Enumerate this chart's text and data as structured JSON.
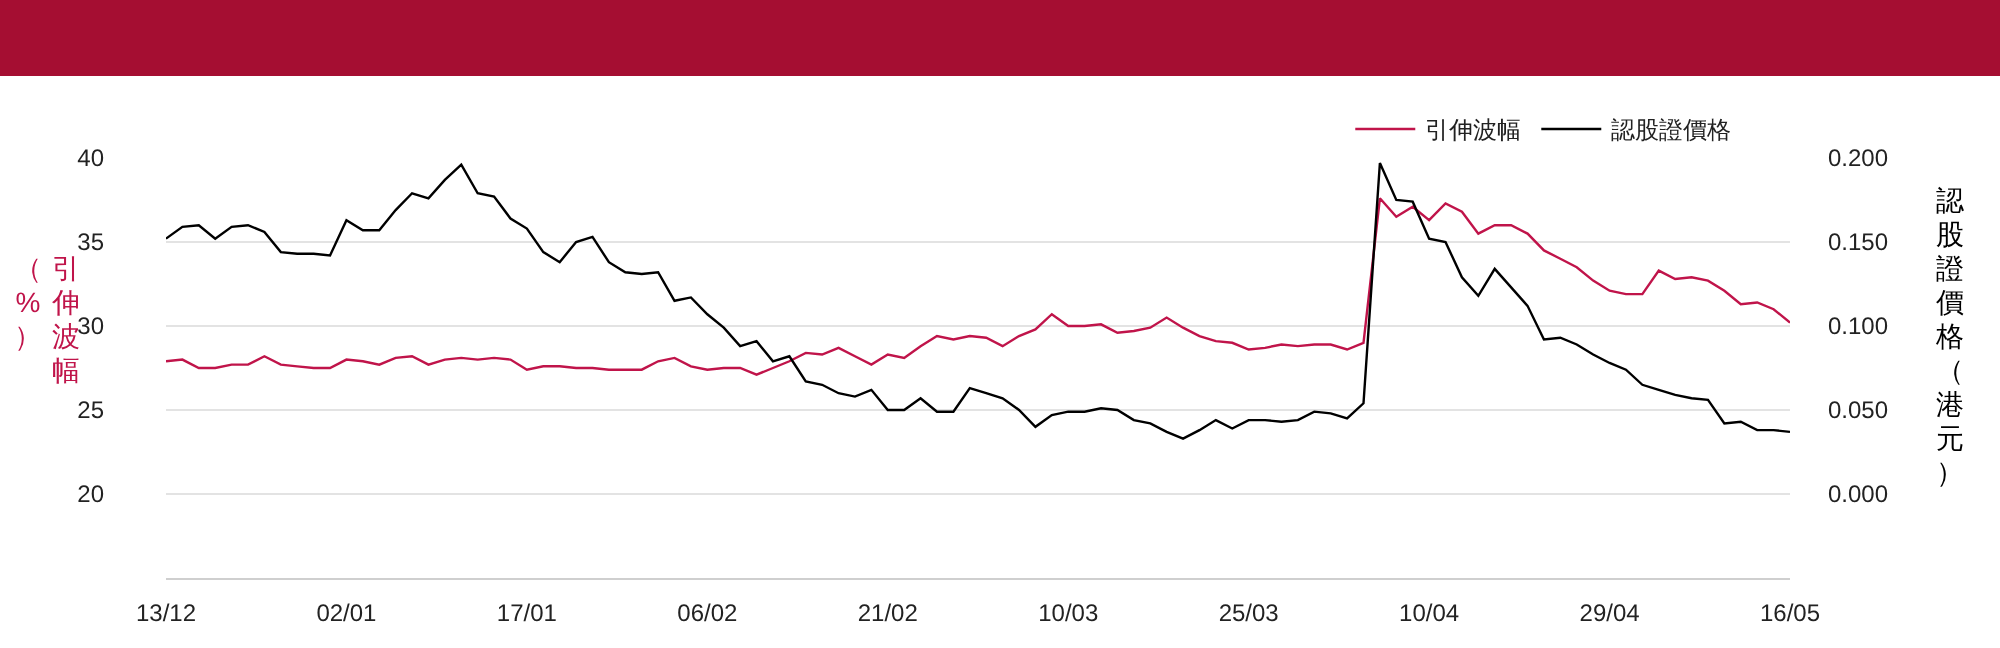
{
  "chart_data": {
    "type": "line",
    "ylabel": "引伸波幅（%）",
    "y2label": "認股證價格（港元）",
    "categories": [
      "13/12",
      null,
      null,
      null,
      null,
      null,
      null,
      null,
      null,
      null,
      null,
      "02/01",
      null,
      null,
      null,
      null,
      null,
      null,
      null,
      null,
      null,
      null,
      "17/01",
      null,
      null,
      null,
      null,
      null,
      null,
      null,
      null,
      null,
      null,
      "06/02",
      null,
      null,
      null,
      null,
      null,
      null,
      null,
      null,
      null,
      null,
      "21/02",
      null,
      null,
      null,
      null,
      null,
      null,
      null,
      null,
      null,
      null,
      "10/03",
      null,
      null,
      null,
      null,
      null,
      null,
      null,
      null,
      null,
      null,
      "25/03",
      null,
      null,
      null,
      null,
      null,
      null,
      null,
      null,
      null,
      null,
      "10/04",
      null,
      null,
      null,
      null,
      null,
      null,
      null,
      null,
      null,
      null,
      "29/04",
      null,
      null,
      null,
      null,
      null,
      null,
      null,
      null,
      null,
      null,
      "16/05"
    ],
    "series": [
      {
        "name": "引伸波幅",
        "color": "#c0144a",
        "values": [
          27.9,
          28.0,
          27.5,
          27.5,
          27.7,
          27.7,
          28.2,
          27.7,
          27.6,
          27.5,
          27.5,
          28.0,
          27.9,
          27.7,
          28.1,
          28.2,
          27.7,
          28.0,
          28.1,
          28.0,
          28.1,
          28.0,
          27.4,
          27.6,
          27.6,
          27.5,
          27.5,
          27.4,
          27.4,
          27.4,
          27.9,
          28.1,
          27.6,
          27.4,
          27.5,
          27.5,
          27.1,
          27.5,
          27.9,
          28.4,
          28.3,
          28.7,
          28.2,
          27.7,
          28.3,
          28.1,
          28.8,
          29.4,
          29.2,
          29.4,
          29.3,
          28.8,
          29.4,
          29.8,
          30.7,
          30.0,
          30.0,
          30.1,
          29.6,
          29.7,
          29.9,
          30.5,
          29.9,
          29.4,
          29.1,
          29.0,
          28.6,
          28.7,
          28.9,
          28.8,
          28.9,
          28.9,
          28.6,
          29.0,
          37.6,
          36.5,
          37.1,
          36.3,
          37.3,
          36.8,
          35.5,
          36.0,
          36.0,
          35.5,
          34.5,
          34.0,
          33.5,
          32.7,
          32.1,
          31.9,
          31.9,
          33.3,
          32.8,
          32.9,
          32.7,
          32.1,
          31.3,
          31.4,
          31.0,
          30.2
        ]
      },
      {
        "name": "認股證價格",
        "color": "#000000",
        "axis": "y2",
        "values": [
          0.152,
          0.159,
          0.16,
          0.152,
          0.159,
          0.16,
          0.156,
          0.144,
          0.143,
          0.143,
          0.142,
          0.163,
          0.157,
          0.157,
          0.169,
          0.179,
          0.176,
          0.187,
          0.196,
          0.179,
          0.177,
          0.164,
          0.158,
          0.144,
          0.138,
          0.15,
          0.153,
          0.138,
          0.132,
          0.131,
          0.132,
          0.115,
          0.117,
          0.107,
          0.099,
          0.088,
          0.091,
          0.079,
          0.082,
          0.067,
          0.065,
          0.06,
          0.058,
          0.062,
          0.05,
          0.05,
          0.057,
          0.049,
          0.049,
          0.063,
          0.06,
          0.057,
          0.05,
          0.04,
          0.047,
          0.049,
          0.049,
          0.051,
          0.05,
          0.044,
          0.042,
          0.037,
          0.033,
          0.038,
          0.044,
          0.039,
          0.044,
          0.044,
          0.043,
          0.044,
          0.049,
          0.048,
          0.045,
          0.054,
          0.197,
          0.175,
          0.174,
          0.152,
          0.15,
          0.129,
          0.118,
          0.134,
          0.123,
          0.112,
          0.092,
          0.093,
          0.089,
          0.083,
          0.078,
          0.074,
          0.065,
          0.062,
          0.059,
          0.057,
          0.056,
          0.042,
          0.043,
          0.038,
          0.038,
          0.037
        ]
      }
    ],
    "ylim": [
      15,
      40
    ],
    "yticks": [
      20,
      25,
      30,
      35,
      40
    ],
    "y2lim": [
      -0.05,
      0.2
    ],
    "y2ticks": [
      {
        "value": 0,
        "label": "0.000"
      },
      {
        "value": 0.05,
        "label": "0.050"
      },
      {
        "value": 0.1,
        "label": "0.100"
      },
      {
        "value": 0.15,
        "label": "0.150"
      },
      {
        "value": 0.2,
        "label": "0.200"
      }
    ],
    "grid": "y",
    "legend": "top right"
  }
}
